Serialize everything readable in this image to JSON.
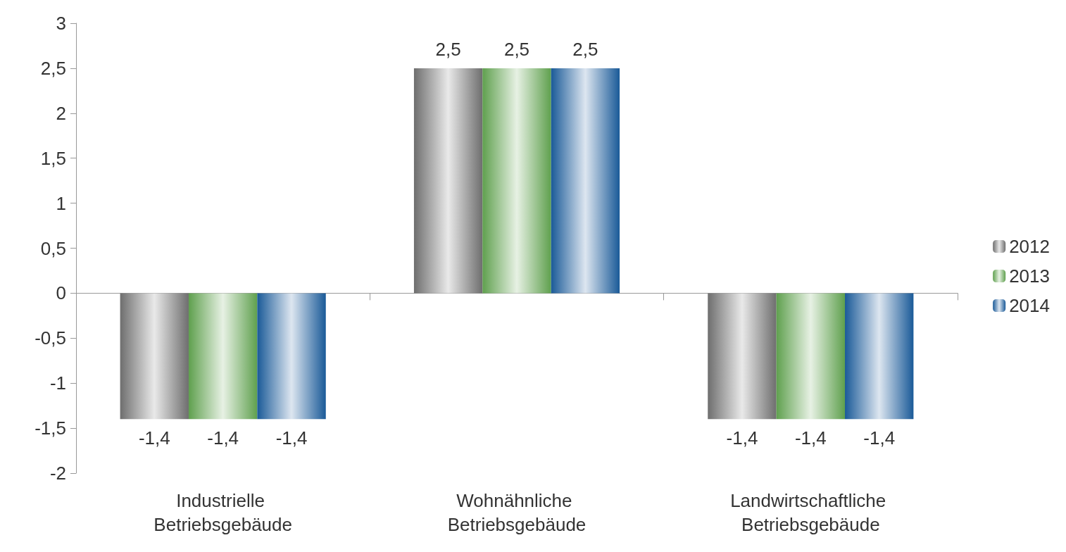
{
  "chart_data": {
    "type": "bar",
    "categories": [
      "Industrielle Betriebsgebäude",
      "Wohnähnliche Betriebsgebäude",
      "Landwirtschaftliche Betriebsgebäude"
    ],
    "series": [
      {
        "name": "2012",
        "color": "#6e6e6e",
        "values": [
          -1.4,
          2.5,
          -1.4
        ],
        "value_labels": [
          "-1,4",
          "2,5",
          "-1,4"
        ]
      },
      {
        "name": "2013",
        "color": "#5fa04e",
        "values": [
          -1.4,
          2.5,
          -1.4
        ],
        "value_labels": [
          "-1,4",
          "2,5",
          "-1,4"
        ]
      },
      {
        "name": "2014",
        "color": "#1a5a98",
        "values": [
          -1.4,
          2.5,
          -1.4
        ],
        "value_labels": [
          "-1,4",
          "2,5",
          "-1,4"
        ]
      }
    ],
    "ylim": [
      -2,
      3
    ],
    "yticks": [
      -2,
      {
        "value": -1.5,
        "label": "-1,5"
      },
      -1,
      {
        "value": -0.5,
        "label": "-0,5"
      },
      0,
      {
        "value": 0.5,
        "label": "0,5"
      },
      1,
      {
        "value": 1.5,
        "label": "1,5"
      },
      2,
      {
        "value": 2.5,
        "label": "2,5"
      },
      3
    ],
    "legend": "right"
  }
}
